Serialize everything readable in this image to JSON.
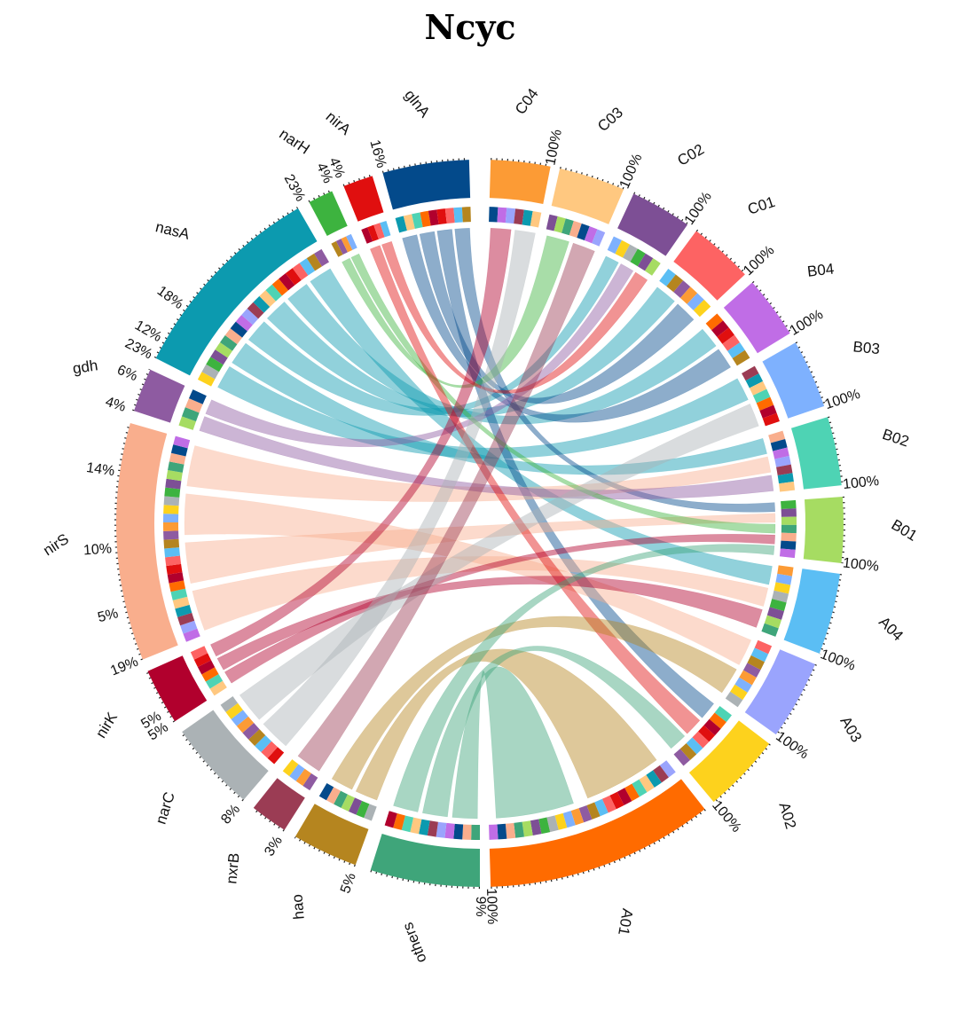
{
  "title": "Ncyc",
  "segments": [
    {
      "name": "others",
      "pct": "9%",
      "color": "#3fa57a",
      "start": 180.0,
      "end": 197.5
    },
    {
      "name": "hao",
      "pct": "5%",
      "color": "#b5851f",
      "start": 200.0,
      "end": 210.5
    },
    {
      "name": "nxrB",
      "pct": "3%",
      "color": "#9b3c54",
      "start": 212.5,
      "end": 218.5
    },
    {
      "name": "narC",
      "pct": "8%",
      "color": "#abb2b5",
      "start": 220.5,
      "end": 235.0
    },
    {
      "name": "nirK",
      "pct": "5%",
      "color": "#b1002d",
      "start": 237.0,
      "end": 246.0
    },
    {
      "name": "nirS",
      "pct": "19%",
      "color": "#f9ae8d",
      "start": 248.0,
      "end": 286.0
    },
    {
      "name": "gdh",
      "pct": "4%",
      "color": "#8e5ba1",
      "start": 288.0,
      "end": 295.0
    },
    {
      "name": "nasA",
      "pct": "23%",
      "color": "#0c9aaf",
      "start": 297.0,
      "end": 330.0
    },
    {
      "name": "narH",
      "pct": "",
      "color": "#3db33f",
      "start": 332.0,
      "end": 336.0
    },
    {
      "name": "nirA",
      "pct": "4%",
      "color": "#e00f0f",
      "start": 338.0,
      "end": 342.8
    },
    {
      "name": "glnA",
      "pct": "16%",
      "color": "#034a8b",
      "start": 344.5,
      "end": 358.3
    },
    {
      "name": "C04",
      "pct": "100%",
      "color": "#fc9b35",
      "start": 1.7,
      "end": 11.2
    },
    {
      "name": "C03",
      "pct": "100%",
      "color": "#ffc880",
      "start": 12.7,
      "end": 23.3
    },
    {
      "name": "C02",
      "pct": "100%",
      "color": "#7d4f95",
      "start": 25.0,
      "end": 34.8
    },
    {
      "name": "C01",
      "pct": "100%",
      "color": "#fd6363",
      "start": 36.5,
      "end": 46.8
    },
    {
      "name": "B04",
      "pct": "100%",
      "color": "#c06de6",
      "start": 48.5,
      "end": 58.5
    },
    {
      "name": "B03",
      "pct": "100%",
      "color": "#7eb1fe",
      "start": 60.2,
      "end": 71.2
    },
    {
      "name": "B02",
      "pct": "100%",
      "color": "#4ed3b4",
      "start": 73.0,
      "end": 84.0
    },
    {
      "name": "B01",
      "pct": "100%",
      "color": "#a6dc62",
      "start": 85.8,
      "end": 96.3
    },
    {
      "name": "A04",
      "pct": "100%",
      "color": "#5bbef4",
      "start": 98.0,
      "end": 111.0
    },
    {
      "name": "A03",
      "pct": "100%",
      "color": "#9aa4fd",
      "start": 112.8,
      "end": 125.5
    },
    {
      "name": "A02",
      "pct": "100%",
      "color": "#fdd21d",
      "start": 127.3,
      "end": 140.0
    },
    {
      "name": "A01",
      "pct": "100%",
      "color": "#ff6b00",
      "start": 141.8,
      "end": 178.3
    }
  ],
  "ticks": [
    {
      "text": "18%",
      "angle": 306
    },
    {
      "text": "12%",
      "angle": 300
    },
    {
      "text": "6%",
      "angle": 293
    },
    {
      "text": "14%",
      "angle": 278
    },
    {
      "text": "10%",
      "angle": 266
    },
    {
      "text": "5%",
      "angle": 256
    },
    {
      "text": "5%",
      "angle": 239
    },
    {
      "text": "23%",
      "angle": 331
    },
    {
      "text": "4%",
      "angle": 336
    }
  ],
  "links": [
    {
      "from": "nasA",
      "to": "B03",
      "color": "#0c9aaf"
    },
    {
      "from": "nasA",
      "to": "B02",
      "color": "#0c9aaf"
    },
    {
      "from": "nasA",
      "to": "C02",
      "color": "#0c9aaf"
    },
    {
      "from": "nasA",
      "to": "C01",
      "color": "#0c9aaf"
    },
    {
      "from": "nasA",
      "to": "B04",
      "color": "#0c9aaf"
    },
    {
      "from": "nasA",
      "to": "A04",
      "color": "#0c9aaf"
    },
    {
      "from": "glnA",
      "to": "B04",
      "color": "#034a8b"
    },
    {
      "from": "glnA",
      "to": "C01",
      "color": "#034a8b"
    },
    {
      "from": "glnA",
      "to": "A02",
      "color": "#034a8b"
    },
    {
      "from": "glnA",
      "to": "B01",
      "color": "#034a8b"
    },
    {
      "from": "nirS",
      "to": "A04",
      "color": "#f9ae8d"
    },
    {
      "from": "nirS",
      "to": "B01",
      "color": "#f9ae8d"
    },
    {
      "from": "nirS",
      "to": "A03",
      "color": "#f9ae8d"
    },
    {
      "from": "nirS",
      "to": "B02",
      "color": "#f9ae8d"
    },
    {
      "from": "gdh",
      "to": "B02",
      "color": "#8e5ba1"
    },
    {
      "from": "gdh",
      "to": "C02",
      "color": "#8e5ba1"
    },
    {
      "from": "narH",
      "to": "C03",
      "color": "#3db33f"
    },
    {
      "from": "narH",
      "to": "B01",
      "color": "#3db33f"
    },
    {
      "from": "nirA",
      "to": "A02",
      "color": "#e00f0f"
    },
    {
      "from": "nirA",
      "to": "C02",
      "color": "#e00f0f"
    },
    {
      "from": "nirK",
      "to": "B01",
      "color": "#b1002d"
    },
    {
      "from": "nirK",
      "to": "A04",
      "color": "#b1002d"
    },
    {
      "from": "nirK",
      "to": "C04",
      "color": "#b1002d"
    },
    {
      "from": "narC",
      "to": "C04",
      "color": "#abb2b5"
    },
    {
      "from": "narC",
      "to": "B03",
      "color": "#abb2b5"
    },
    {
      "from": "nxrB",
      "to": "C03",
      "color": "#9b3c54"
    },
    {
      "from": "hao",
      "to": "A01",
      "color": "#b5851f"
    },
    {
      "from": "hao",
      "to": "A03",
      "color": "#b5851f"
    },
    {
      "from": "others",
      "to": "A01",
      "color": "#3fa57a"
    },
    {
      "from": "others",
      "to": "A02",
      "color": "#3fa57a"
    },
    {
      "from": "others",
      "to": "B01",
      "color": "#3fa57a"
    }
  ]
}
